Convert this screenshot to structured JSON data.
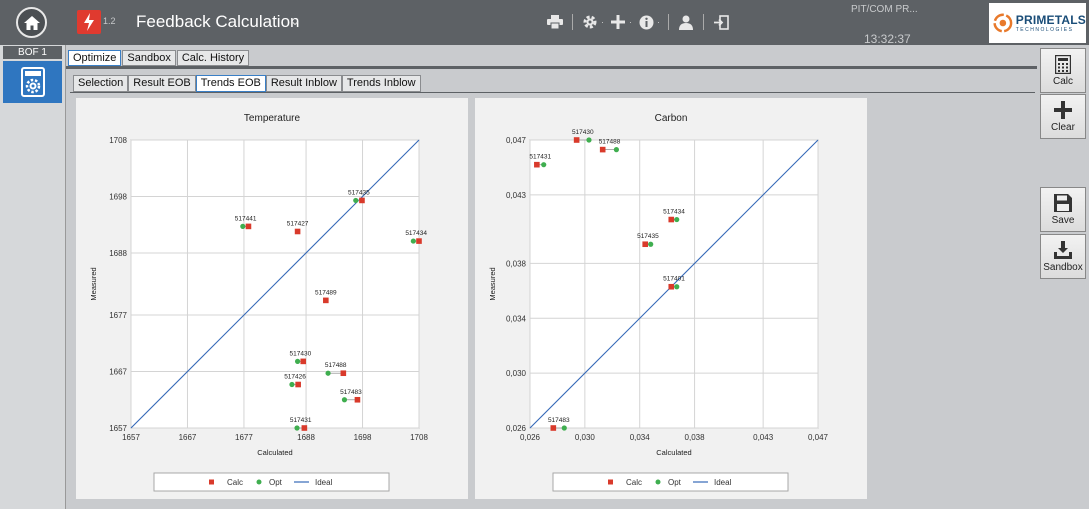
{
  "header": {
    "app_version": "1.2",
    "title": "Feedback Calculation",
    "title_caret": "⌄",
    "user": "PIT/COM PR...",
    "clock": "13:32:37",
    "logo_text": "PRIMETALS",
    "logo_sub": "TECHNOLOGIES"
  },
  "toolbar_icons": [
    "print-icon",
    "gear-icon",
    "plus-icon",
    "info-icon",
    "user-icon",
    "logout-icon"
  ],
  "sidebar": {
    "unit_label": "BOF 1",
    "active_icon": "settings-calculator-icon"
  },
  "tabs": [
    {
      "label": "Optimize",
      "active": true
    },
    {
      "label": "Sandbox",
      "active": false
    },
    {
      "label": "Calc. History",
      "active": false
    }
  ],
  "subtabs": [
    {
      "label": "Selection",
      "active": false
    },
    {
      "label": "Result EOB",
      "active": false
    },
    {
      "label": "Trends EOB",
      "active": true
    },
    {
      "label": "Result Inblow",
      "active": false
    },
    {
      "label": "Trends Inblow",
      "active": false
    }
  ],
  "right_buttons": [
    {
      "label": "Calc",
      "icon": "calculator-icon"
    },
    {
      "label": "Clear",
      "icon": "plus-icon"
    },
    {
      "label": "Save",
      "icon": "save-icon"
    },
    {
      "label": "Sandbox",
      "icon": "download-icon"
    }
  ],
  "colors": {
    "calc": "#d93a2b",
    "opt": "#3fae4f",
    "ideal": "#3569b8",
    "accent": "#2f76c0",
    "titlebar": "#5d6165"
  },
  "chart_data": [
    {
      "type": "scatter",
      "title": "Temperature",
      "xlabel": "Calculated",
      "ylabel": "Measured",
      "xlim": [
        1657,
        1708
      ],
      "ylim": [
        1657,
        1708
      ],
      "xticks": [
        "1657",
        "1667",
        "1677",
        "1688",
        "1698",
        "1708"
      ],
      "yticks": [
        "1657",
        "1667",
        "1677",
        "1688",
        "1698",
        "1708"
      ],
      "tick_values": [
        1657,
        1667,
        1677,
        1688,
        1698,
        1708
      ],
      "points": [
        {
          "label": "517441",
          "calc": [
            1677.8,
            1692.7
          ],
          "opt": [
            1676.8,
            1692.7
          ]
        },
        {
          "label": "517427",
          "calc": [
            1686.5,
            1691.8
          ],
          "opt": null
        },
        {
          "label": "517435",
          "calc": [
            1697.9,
            1697.3
          ],
          "opt": [
            1696.8,
            1697.3
          ]
        },
        {
          "label": "517434",
          "calc": [
            1708.0,
            1690.1
          ],
          "opt": [
            1707.0,
            1690.1
          ]
        },
        {
          "label": "517489",
          "calc": [
            1691.5,
            1679.6
          ],
          "opt": null
        },
        {
          "label": "517430",
          "calc": [
            1687.5,
            1668.8
          ],
          "opt": [
            1686.5,
            1668.8
          ]
        },
        {
          "label": "517488",
          "calc": [
            1694.6,
            1666.7
          ],
          "opt": [
            1691.9,
            1666.7
          ]
        },
        {
          "label": "517426",
          "calc": [
            1686.6,
            1664.7
          ],
          "opt": [
            1685.5,
            1664.7
          ]
        },
        {
          "label": "517483",
          "calc": [
            1697.1,
            1662.0
          ],
          "opt": [
            1694.8,
            1662.0
          ]
        },
        {
          "label": "517431",
          "calc": [
            1687.7,
            1657.0
          ],
          "opt": [
            1686.4,
            1657.0
          ]
        }
      ],
      "ideal": [
        [
          1657,
          1657
        ],
        [
          1708,
          1708
        ]
      ],
      "legend": [
        "Calc",
        "Opt",
        "Ideal"
      ],
      "legend_position": "bottom",
      "grid": true
    },
    {
      "type": "scatter",
      "title": "Carbon",
      "xlabel": "Calculated",
      "ylabel": "Measured",
      "xlim": [
        0.026,
        0.047
      ],
      "ylim": [
        0.026,
        0.047
      ],
      "xticks": [
        "0,026",
        "0,030",
        "0,034",
        "0,038",
        "0,043",
        "0,047"
      ],
      "yticks": [
        "0,026",
        "0,030",
        "0,034",
        "0,038",
        "0,043",
        "0,047"
      ],
      "tick_values": [
        0.026,
        0.03,
        0.034,
        0.038,
        0.043,
        0.047
      ],
      "points": [
        {
          "label": "517430",
          "calc": [
            0.0294,
            0.047
          ],
          "opt": [
            0.0303,
            0.047
          ]
        },
        {
          "label": "517488",
          "calc": [
            0.0313,
            0.0463
          ],
          "opt": [
            0.0323,
            0.0463
          ]
        },
        {
          "label": "517431",
          "calc": [
            0.0265,
            0.0452
          ],
          "opt": [
            0.027,
            0.0452
          ]
        },
        {
          "label": "517434",
          "calc": [
            0.0363,
            0.0412
          ],
          "opt": [
            0.0367,
            0.0412
          ]
        },
        {
          "label": "517435",
          "calc": [
            0.0344,
            0.0394
          ],
          "opt": [
            0.0348,
            0.0394
          ]
        },
        {
          "label": "517401",
          "calc": [
            0.0363,
            0.0363
          ],
          "opt": [
            0.0367,
            0.0363
          ]
        },
        {
          "label": "517483",
          "calc": [
            0.0277,
            0.026
          ],
          "opt": [
            0.0285,
            0.026
          ]
        }
      ],
      "ideal": [
        [
          0.026,
          0.026
        ],
        [
          0.047,
          0.047
        ]
      ],
      "legend": [
        "Calc",
        "Opt",
        "Ideal"
      ],
      "legend_position": "bottom",
      "grid": true
    }
  ]
}
